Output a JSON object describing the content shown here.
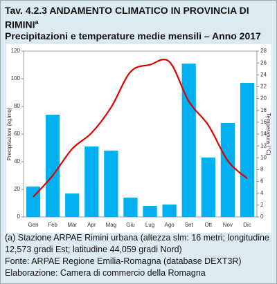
{
  "chart_data": {
    "type": "bar",
    "title": "Tav. 4.2.3 ANDAMENTO CLIMATICO IN PROVINCIA DI RIMINI",
    "title_note": "a",
    "subtitle": "Precipitazioni e temperature medie mensili – Anno 2017",
    "y_label": "Precipitazioni (kg/mq)",
    "y2_label": "Temperatura (°C)",
    "categories": [
      "Gen",
      "Feb",
      "Mar",
      "Apr",
      "Mag",
      "Giu",
      "Lug",
      "Ago",
      "Set",
      "Ott",
      "Nov",
      "Dic"
    ],
    "series": [
      {
        "type": "bar",
        "color": "#00b0f0",
        "values": [
          22,
          74,
          17,
          51,
          48,
          14,
          8,
          9,
          111,
          43,
          68,
          97
        ]
      },
      {
        "type": "line",
        "color": "#e00000",
        "axis": "y2",
        "values": [
          3.4,
          7,
          11.5,
          14.2,
          18.5,
          24.5,
          25.7,
          26.2,
          19.5,
          15.5,
          9.5,
          6.5
        ]
      }
    ],
    "ylim": [
      0,
      120
    ],
    "yticks": [
      0,
      20,
      40,
      60,
      80,
      100,
      120
    ],
    "y2lim": [
      0,
      28
    ],
    "y2ticks": [
      0,
      2,
      4,
      6,
      8,
      10,
      12,
      14,
      16,
      18,
      20,
      22,
      24,
      26,
      28
    ]
  },
  "notes": [
    "(a) Stazione ARPAE Rimini urbana (altezza slm: 16 metri; longitudine 12,573 gradi Est; latitudine  44,059 gradi Nord)",
    "Fonte: ARPAE Regione Emilia-Romagna (database DEXT3R)",
    "Elaborazione: Camera di commercio della Romagna"
  ]
}
